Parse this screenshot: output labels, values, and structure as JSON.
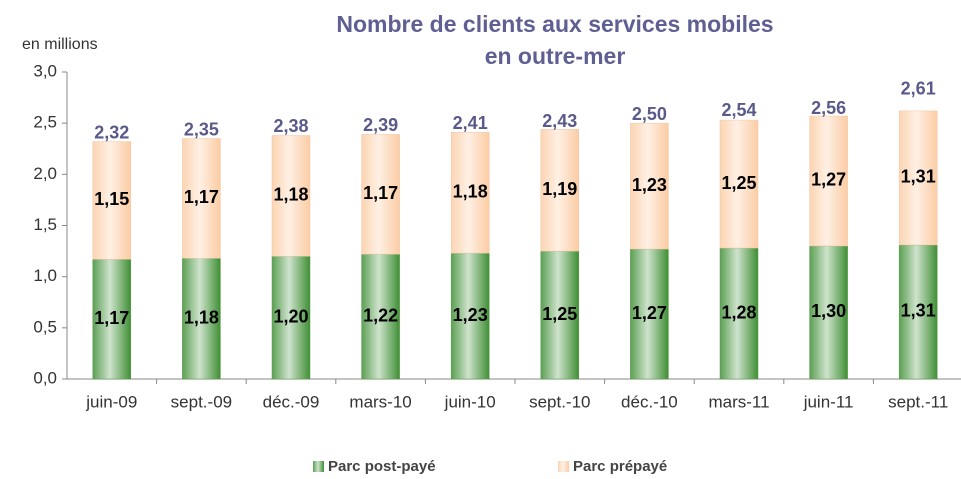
{
  "chart_data": {
    "type": "stacked_bar",
    "title": "Nombre de clients aux services mobiles en outre-mer",
    "y_label": "en millions",
    "categories": [
      "juin-09",
      "sept.-09",
      "déc.-09",
      "mars-10",
      "juin-10",
      "sept.-10",
      "déc.-10",
      "mars-11",
      "juin-11",
      "sept.-11"
    ],
    "series": [
      {
        "name": "Parc post-payé",
        "color": "#3f8f35",
        "values": [
          1.17,
          1.18,
          1.2,
          1.22,
          1.23,
          1.25,
          1.27,
          1.28,
          1.3,
          1.31
        ],
        "value_labels": [
          "1,17",
          "1,18",
          "1,20",
          "1,22",
          "1,23",
          "1,25",
          "1,27",
          "1,28",
          "1,30",
          "1,31"
        ]
      },
      {
        "name": "Parc prépayé",
        "color": "#fbcca4",
        "values": [
          1.15,
          1.17,
          1.18,
          1.17,
          1.18,
          1.19,
          1.23,
          1.25,
          1.27,
          1.31
        ],
        "value_labels": [
          "1,15",
          "1,17",
          "1,18",
          "1,17",
          "1,18",
          "1,19",
          "1,23",
          "1,25",
          "1,27",
          "1,31"
        ]
      }
    ],
    "totals": [
      2.32,
      2.35,
      2.38,
      2.39,
      2.41,
      2.43,
      2.5,
      2.54,
      2.56,
      2.61
    ],
    "total_labels": [
      "2,32",
      "2,35",
      "2,38",
      "2,39",
      "2,41",
      "2,43",
      "2,50",
      "2,54",
      "2,56",
      "2,61"
    ],
    "ylim": [
      0,
      3
    ],
    "yticks": [
      {
        "value": 0,
        "label": "0,0"
      },
      {
        "value": 0.5,
        "label": "0,5"
      },
      {
        "value": 1,
        "label": "1,0"
      },
      {
        "value": 1.5,
        "label": "1,5"
      },
      {
        "value": 2,
        "label": "2,0"
      },
      {
        "value": 2.5,
        "label": "2,5"
      },
      {
        "value": 3,
        "label": "3,0"
      }
    ],
    "grid": false,
    "legend": "bottom"
  }
}
